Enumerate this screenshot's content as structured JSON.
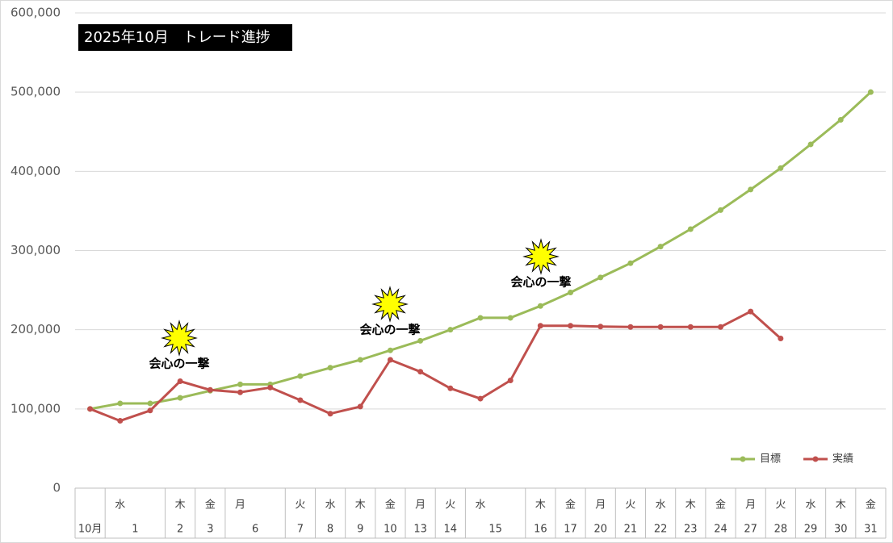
{
  "chart_data": {
    "type": "line",
    "title": "2025年10月　トレード進捗",
    "categories": [
      "10月",
      "1",
      null,
      "2",
      "3",
      "6",
      null,
      "7",
      "8",
      "9",
      "10",
      "13",
      "14",
      "15",
      null,
      "16",
      "17",
      "20",
      "21",
      "22",
      "23",
      "24",
      "27",
      "28",
      "29",
      "30",
      "31"
    ],
    "weekdays": [
      null,
      "水",
      null,
      "木",
      "金",
      "月",
      null,
      "火",
      "水",
      "木",
      "金",
      "月",
      "火",
      "水",
      null,
      "木",
      "金",
      "月",
      "火",
      "水",
      "木",
      "金",
      "月",
      "火",
      "水",
      "木",
      "金"
    ],
    "series": [
      {
        "name": "目標",
        "color": "#9bbb59",
        "values": [
          100000,
          107000,
          107000,
          114000,
          123000,
          131000,
          131000,
          141500,
          152000,
          162000,
          174000,
          186000,
          200000,
          215000,
          215000,
          230000,
          247000,
          266000,
          284000,
          305000,
          327000,
          351000,
          377000,
          404000,
          434000,
          465000,
          500000
        ]
      },
      {
        "name": "実績",
        "color": "#c0504d",
        "values": [
          100000,
          85000,
          98000,
          135000,
          124000,
          121000,
          127000,
          111000,
          94000,
          103000,
          162000,
          147000,
          126000,
          113000,
          136000,
          205000,
          205000,
          204000,
          203500,
          203500,
          203500,
          203500,
          223000,
          189000,
          null,
          null,
          null
        ]
      }
    ],
    "annotations": [
      "会心の一撃",
      "会心の一撃",
      "会心の一撃"
    ],
    "ylim": [
      0,
      600000
    ],
    "yticks": [
      0,
      {
        "value": 100000,
        "label": "100,000"
      },
      {
        "value": 200000,
        "label": "200,000"
      },
      {
        "value": 300000,
        "label": "300,000"
      },
      {
        "value": 400000,
        "label": "400,000"
      },
      {
        "value": 500000,
        "label": "500,000"
      },
      {
        "value": 600000,
        "label": "600,000"
      }
    ],
    "grid": true,
    "legend": "lower right"
  }
}
